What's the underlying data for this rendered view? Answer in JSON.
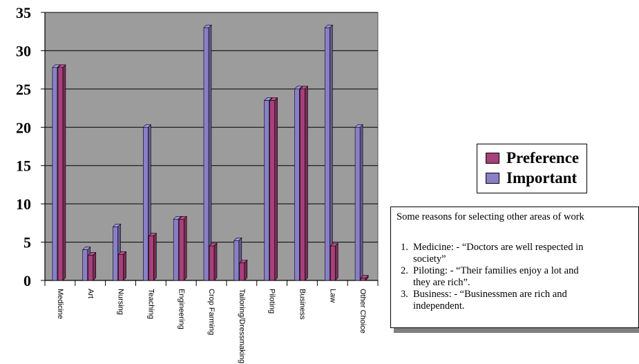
{
  "chart_data": {
    "type": "bar",
    "categories": [
      "Medicine",
      "Art",
      "Nursing",
      "Teaching",
      "Engineering",
      "Crop Farming",
      "Tailoring/Dressmaking",
      "Piloting",
      "Business",
      "Law",
      "Other Choice"
    ],
    "series": [
      {
        "name": "Important",
        "values": [
          27.8,
          4.0,
          7.0,
          20.0,
          8.0,
          33.0,
          5.2,
          23.5,
          25.0,
          33.0,
          20.0
        ],
        "color": "#8a7fc7"
      },
      {
        "name": "Preference",
        "values": [
          27.8,
          3.3,
          3.4,
          5.8,
          8.0,
          4.5,
          2.3,
          23.5,
          25.0,
          4.5,
          0.3
        ],
        "color": "#a8407a"
      }
    ],
    "ylim": [
      0,
      35
    ],
    "yticks": [
      "0",
      "5",
      "10",
      "15",
      "20",
      "25",
      "30",
      "35"
    ],
    "grid": true,
    "plot_background": "#9c9c9c",
    "legend_position": "right",
    "legend": [
      {
        "label": "Preference",
        "color": "#a8407a"
      },
      {
        "label": "Important",
        "color": "#8a7fc7"
      }
    ]
  },
  "note": {
    "title": "Some reasons for selecting other areas of work",
    "items": [
      {
        "num": "1.",
        "first": "Medicine: - “Doctors are well respected in",
        "rest": "society”"
      },
      {
        "num": "2.",
        "first": "Piloting: - “Their families enjoy a lot and",
        "rest": "they are rich”."
      },
      {
        "num": "3.",
        "first": "Business: - “Businessmen are rich and",
        "rest": "independent."
      }
    ]
  }
}
